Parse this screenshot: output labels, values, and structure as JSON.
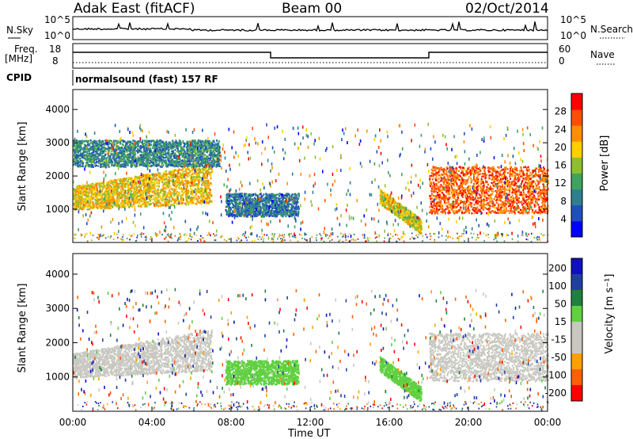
{
  "header": {
    "station": "Adak East (fitACF)",
    "beam": "Beam 00",
    "date": "02/Oct/2014"
  },
  "labels": {
    "nsky": "N.Sky",
    "nsearch": "N.Search",
    "freq": "Freq.",
    "freq_unit": "[MHz]",
    "nave": "Nave",
    "cpid": "CPID",
    "cpid_value": "normalsound (fast) 157 RF"
  },
  "noise_axis": {
    "left_ticks": [
      "10^5",
      "10^0"
    ],
    "right_ticks": [
      "10^5",
      "10^0"
    ]
  },
  "freq_axis": {
    "left_ticks": [
      "18",
      "8"
    ],
    "right_ticks": [
      "60",
      "0"
    ]
  },
  "colors": {
    "power": [
      "#0000ff",
      "#1f4fbf",
      "#2f7f8f",
      "#3fa35f",
      "#8fbf2f",
      "#ffcf00",
      "#ff8f00",
      "#ff4f00",
      "#ff0000"
    ],
    "velocity": [
      "#ff0000",
      "#ff6000",
      "#ffa000",
      "#c8c8c0",
      "#c8c8c0",
      "#60d040",
      "#208040",
      "#2040a0",
      "#1010c0"
    ]
  },
  "chart_data": [
    {
      "type": "heatmap",
      "ylabel": "Slant Range [km]",
      "x_ticks": [
        "00:00",
        "04:00",
        "08:00",
        "12:00",
        "16:00",
        "20:00",
        "00:00"
      ],
      "y_ticks": [
        "1000",
        "2000",
        "3000",
        "4000"
      ],
      "ylim": [
        0,
        4600
      ],
      "xlim_hours": [
        0,
        24
      ],
      "colorbar": {
        "label": "Power [dB]",
        "ticks": [
          "4",
          "8",
          "12",
          "16",
          "20",
          "24",
          "28"
        ],
        "range": [
          0,
          32
        ]
      },
      "features": [
        {
          "name": "early evening band",
          "t0": 0,
          "t1": 7.0,
          "range_km": [
            900,
            1800
          ],
          "value_db": 20
        },
        {
          "name": "upper band",
          "t0": 0,
          "t1": 7.4,
          "range_km": [
            2300,
            3100
          ],
          "value_db": 10
        },
        {
          "name": "midday patch",
          "t0": 7.7,
          "t1": 11.4,
          "range_km": [
            800,
            1500
          ],
          "value_db": 8
        },
        {
          "name": "descending streak",
          "t0": 15.5,
          "t1": 17.6,
          "range_km": [
            400,
            1500
          ],
          "value_db": 18
        },
        {
          "name": "late band",
          "t0": 18.0,
          "t1": 24.0,
          "range_km": [
            900,
            2300
          ],
          "value_db": 26
        }
      ]
    },
    {
      "type": "heatmap",
      "ylabel": "Slant Range [km]",
      "xlabel": "Time UT",
      "x_ticks": [
        "00:00",
        "04:00",
        "08:00",
        "12:00",
        "16:00",
        "20:00",
        "00:00"
      ],
      "y_ticks": [
        "1000",
        "2000",
        "3000",
        "4000"
      ],
      "ylim": [
        0,
        4600
      ],
      "xlim_hours": [
        0,
        24
      ],
      "colorbar": {
        "label": "Velocity [m s⁻¹]",
        "ticks": [
          "200",
          "100",
          "50",
          "15",
          "-15",
          "-50",
          "-100",
          "-200"
        ],
        "range": [
          -250,
          250
        ]
      },
      "features": [
        {
          "name": "early evening band",
          "t0": 0,
          "t1": 7.0,
          "range_km": [
            900,
            1800
          ],
          "value_ms": 0
        },
        {
          "name": "midday patch",
          "t0": 7.7,
          "t1": 11.4,
          "range_km": [
            800,
            1500
          ],
          "value_ms": 40
        },
        {
          "name": "descending streak",
          "t0": 15.5,
          "t1": 17.6,
          "range_km": [
            400,
            1500
          ],
          "value_ms": 30
        },
        {
          "name": "late band",
          "t0": 18.0,
          "t1": 24.0,
          "range_km": [
            900,
            2300
          ],
          "value_ms": 0
        }
      ]
    }
  ]
}
